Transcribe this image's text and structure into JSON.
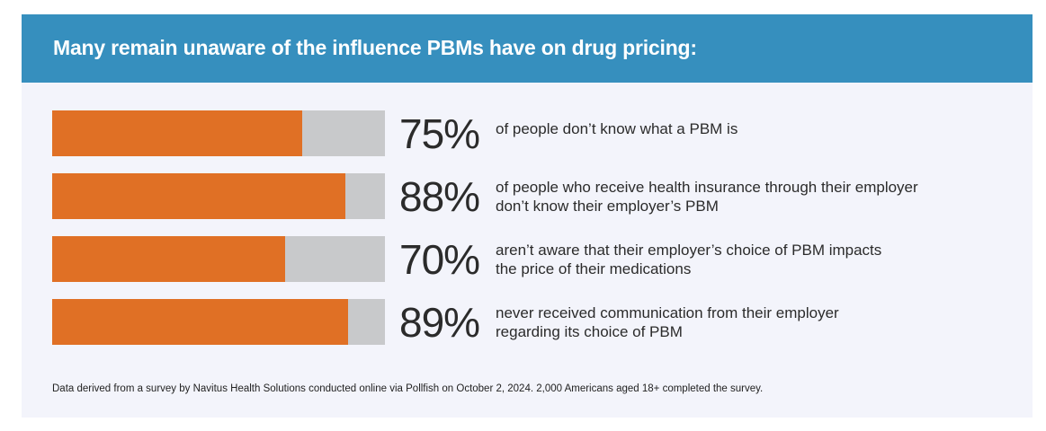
{
  "chart_data": {
    "type": "bar",
    "orientation": "horizontal",
    "title": "Many remain unaware of the influence PBMs have on drug pricing:",
    "xlim": [
      0,
      100
    ],
    "items": [
      {
        "value": 75,
        "label": "75%",
        "lines": [
          "of people don’t know what a PBM is"
        ]
      },
      {
        "value": 88,
        "label": "88%",
        "lines": [
          "of people who receive health insurance through their employer",
          "don’t know their employer’s PBM"
        ]
      },
      {
        "value": 70,
        "label": "70%",
        "lines": [
          "aren’t aware that their employer’s choice of PBM impacts",
          "the price of their medications"
        ]
      },
      {
        "value": 89,
        "label": "89%",
        "lines": [
          "never received communication from their employer",
          "regarding its choice of PBM"
        ]
      }
    ],
    "colors": {
      "fill": "#e07025",
      "track": "#c8c9cb",
      "header": "#368fbe"
    },
    "footnote": "Data derived from a survey by Navitus Health Solutions conducted online via Pollfish on October 2, 2024. 2,000 Americans aged 18+ completed the survey."
  }
}
